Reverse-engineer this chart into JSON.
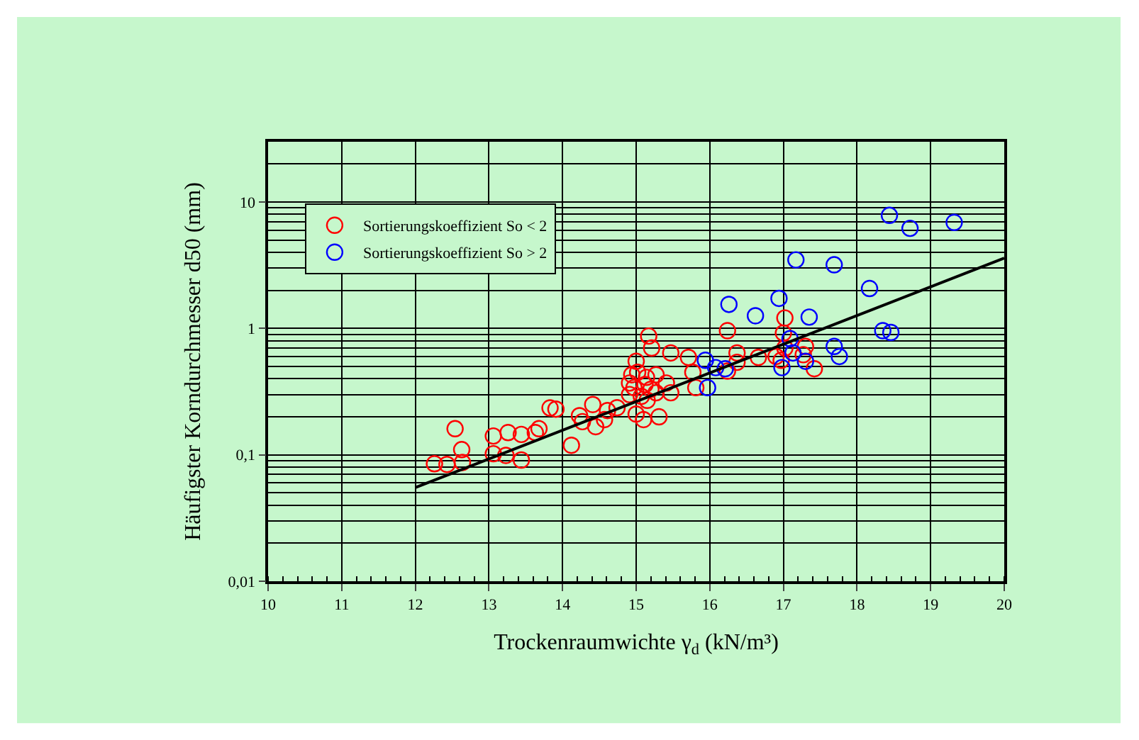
{
  "chart_data": {
    "type": "scatter",
    "xlabel": "Trockenraumwichte γ$_{d}$ (kN/m³)",
    "ylabel": "Häufigster Korndurchmesser d50 (mm)",
    "xlim": [
      10,
      20
    ],
    "xticks": [
      10,
      11,
      12,
      13,
      14,
      15,
      16,
      17,
      18,
      19,
      20
    ],
    "ylim": [
      0.01,
      30
    ],
    "yticks": [
      {
        "value": 0.01,
        "label": "0,01"
      },
      {
        "value": 0.1,
        "label": "0,1"
      },
      1,
      10
    ],
    "log": "y",
    "grid": true,
    "legend": "top left",
    "marker": "circle",
    "series": [
      {
        "name": "Sortierungskoeffizient So < 2",
        "color": "#ff0000",
        "x": [
          12.26,
          12.43,
          12.64,
          12.54,
          12.63,
          13.06,
          13.06,
          13.23,
          13.26,
          13.44,
          13.44,
          13.63,
          13.68,
          13.83,
          13.91,
          14.12,
          14.23,
          14.27,
          14.41,
          14.45,
          14.57,
          14.61,
          14.74,
          14.91,
          14.97,
          15.0,
          15.0,
          15.1,
          15.17,
          15.21,
          15.14,
          15.07,
          15.31,
          15.27,
          15.41,
          15.47,
          15.47,
          14.91,
          14.94,
          15.27,
          15.12,
          15.2,
          15.02,
          15.15,
          15.71,
          15.77,
          15.81,
          16.24,
          16.37,
          16.24,
          16.37,
          16.66,
          16.9,
          17.02,
          17.0,
          17.02,
          17.3,
          17.42,
          16.97,
          17.27
        ],
        "values": [
          0.085,
          0.084,
          0.087,
          0.161,
          0.11,
          0.141,
          0.102,
          0.099,
          0.15,
          0.145,
          0.091,
          0.15,
          0.161,
          0.235,
          0.23,
          0.119,
          0.204,
          0.183,
          0.25,
          0.167,
          0.19,
          0.224,
          0.236,
          0.3,
          0.34,
          0.55,
          0.21,
          0.19,
          0.87,
          0.7,
          0.41,
          0.29,
          0.2,
          0.43,
          0.37,
          0.64,
          0.31,
          0.37,
          0.43,
          0.31,
          0.36,
          0.33,
          0.45,
          0.27,
          0.59,
          0.45,
          0.34,
          0.96,
          0.64,
          0.46,
          0.54,
          0.59,
          0.6,
          1.21,
          0.92,
          0.7,
          0.72,
          0.48,
          0.56,
          0.62
        ]
      },
      {
        "name": "Sortierungskoeffizient So > 2",
        "color": "#0000ff",
        "x": [
          18.44,
          18.72,
          19.32,
          17.17,
          17.69,
          18.17,
          16.94,
          16.26,
          16.62,
          17.35,
          18.35,
          18.46,
          17.09,
          17.69,
          17.76,
          17.3,
          16.98,
          17.13,
          15.94,
          16.08,
          16.21,
          15.97
        ],
        "values": [
          7.85,
          6.2,
          6.9,
          3.49,
          3.19,
          2.07,
          1.73,
          1.55,
          1.26,
          1.23,
          0.96,
          0.93,
          0.83,
          0.72,
          0.6,
          0.55,
          0.49,
          0.64,
          0.56,
          0.49,
          0.48,
          0.34
        ]
      },
      {
        "type": "line",
        "marker": "none",
        "color": "#000000",
        "x": [
          12,
          20
        ],
        "values": [
          0.055,
          3.6
        ]
      }
    ]
  }
}
